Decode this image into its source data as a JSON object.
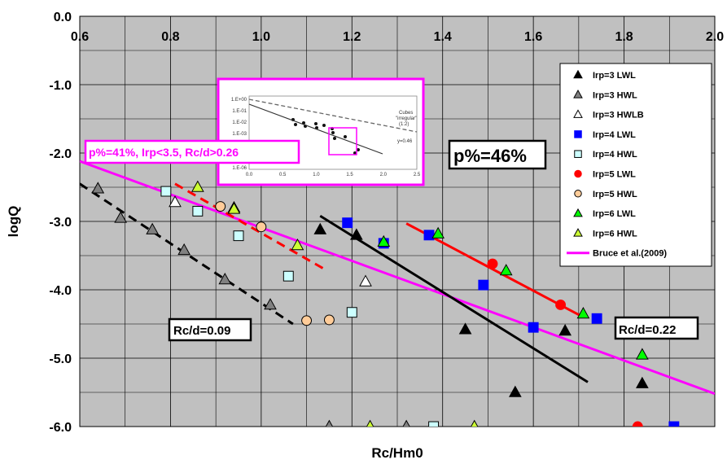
{
  "chart_data": {
    "type": "scatter",
    "xlabel": "Rc/Hm0",
    "ylabel": "logQ",
    "xlim": [
      0.6,
      2.0
    ],
    "ylim": [
      -6.0,
      0.0
    ],
    "x_ticks": [
      "0.6",
      "0.8",
      "1.0",
      "1.2",
      "1.4",
      "1.6",
      "1.8",
      "2.0"
    ],
    "y_ticks": [
      "0.0",
      "-1.0",
      "-2.0",
      "-3.0",
      "-4.0",
      "-5.0",
      "-6.0"
    ],
    "grid": true,
    "legend_position": "right",
    "series": [
      {
        "name": "Irp=3 LWL",
        "marker": "triangle",
        "color": "#000000",
        "points": [
          [
            1.13,
            -3.12
          ],
          [
            1.21,
            -3.2
          ],
          [
            1.45,
            -4.58
          ],
          [
            1.56,
            -5.5
          ],
          [
            1.67,
            -4.6
          ],
          [
            1.84,
            -5.37
          ]
        ]
      },
      {
        "name": "Irp=3 HWL",
        "marker": "triangle",
        "color": "#808080",
        "points": [
          [
            0.64,
            -2.52
          ],
          [
            0.69,
            -2.95
          ],
          [
            0.76,
            -3.12
          ],
          [
            0.83,
            -3.42
          ],
          [
            0.92,
            -3.85
          ],
          [
            1.02,
            -4.22
          ],
          [
            1.15,
            -6.0
          ],
          [
            1.32,
            -6.0
          ]
        ]
      },
      {
        "name": "Irp=3 HWLB",
        "marker": "triangle",
        "color": "#ffffff",
        "points": [
          [
            0.81,
            -2.72
          ],
          [
            1.23,
            -3.88
          ]
        ]
      },
      {
        "name": "Irp=4 LWL",
        "marker": "square",
        "color": "#0000ff",
        "points": [
          [
            1.19,
            -3.02
          ],
          [
            1.27,
            -3.32
          ],
          [
            1.37,
            -3.2
          ],
          [
            1.49,
            -3.93
          ],
          [
            1.6,
            -4.55
          ],
          [
            1.74,
            -4.42
          ],
          [
            1.91,
            -6.0
          ]
        ]
      },
      {
        "name": "Irp=4 HWL",
        "marker": "square",
        "color": "#ccffff",
        "points": [
          [
            0.79,
            -2.56
          ],
          [
            0.86,
            -2.85
          ],
          [
            0.95,
            -3.21
          ],
          [
            1.06,
            -3.8
          ],
          [
            1.2,
            -4.33
          ],
          [
            1.38,
            -6.0
          ]
        ]
      },
      {
        "name": "Irp=5 LWL",
        "marker": "circle",
        "color": "#ff0000",
        "points": [
          [
            1.51,
            -3.62
          ],
          [
            1.66,
            -4.22
          ],
          [
            1.83,
            -6.0
          ]
        ]
      },
      {
        "name": "Irp=5 HWL",
        "marker": "circle",
        "color": "#ffcc99",
        "points": [
          [
            0.91,
            -2.78
          ],
          [
            1.0,
            -3.08
          ],
          [
            1.1,
            -4.45
          ],
          [
            1.15,
            -4.44
          ]
        ]
      },
      {
        "name": "Irp=6 LWL",
        "marker": "triangle",
        "color": "#00ff00",
        "points": [
          [
            0.94,
            -2.8
          ],
          [
            1.27,
            -3.3
          ],
          [
            1.39,
            -3.18
          ],
          [
            1.54,
            -3.72
          ],
          [
            1.71,
            -4.35
          ],
          [
            1.84,
            -4.95
          ]
        ]
      },
      {
        "name": "Irp=6 HWL",
        "marker": "triangle",
        "color": "#ccff33",
        "points": [
          [
            0.86,
            -2.5
          ],
          [
            0.94,
            -2.82
          ],
          [
            1.08,
            -3.35
          ],
          [
            1.24,
            -6.0
          ],
          [
            1.47,
            -6.0
          ]
        ]
      }
    ],
    "lines": [
      {
        "name": "Bruce et al.(2009)",
        "color": "#ff00ff",
        "style": "solid",
        "points": [
          [
            0.6,
            -2.12
          ],
          [
            2.0,
            -5.52
          ]
        ]
      },
      {
        "name": "",
        "color": "#000000",
        "style": "dashed",
        "points": [
          [
            0.6,
            -2.45
          ],
          [
            1.07,
            -4.5
          ]
        ]
      },
      {
        "name": "",
        "color": "#ff0000",
        "style": "dashed",
        "points": [
          [
            0.81,
            -2.45
          ],
          [
            1.14,
            -3.7
          ]
        ]
      },
      {
        "name": "",
        "color": "#000000",
        "style": "solid",
        "points": [
          [
            1.13,
            -2.92
          ],
          [
            1.72,
            -5.35
          ]
        ]
      },
      {
        "name": "",
        "color": "#ff0000",
        "style": "solid",
        "points": [
          [
            1.32,
            -3.03
          ],
          [
            1.71,
            -4.4
          ]
        ]
      }
    ],
    "annotations": {
      "p_low": "p%=41%, Irp<3.5, Rc/d>0.26",
      "p_high": "p%=46%",
      "rc_low": "Rc/d=0.09",
      "rc_high": "Rc/d=0.22"
    },
    "inset": {
      "y_ticks": [
        "1.E+00",
        "1.E-01",
        "1.E-02",
        "1.E-03",
        "1.E-04",
        "1.E-05",
        "1.E-06"
      ],
      "x_ticks": [
        "0.0",
        "0.5",
        "1.0",
        "1.5",
        "2.0",
        "2.5"
      ],
      "caption_1": "Cubes",
      "caption_2": "\"irregular\"",
      "caption_3": "(1:2)",
      "caption_4": "y=0.46"
    }
  }
}
